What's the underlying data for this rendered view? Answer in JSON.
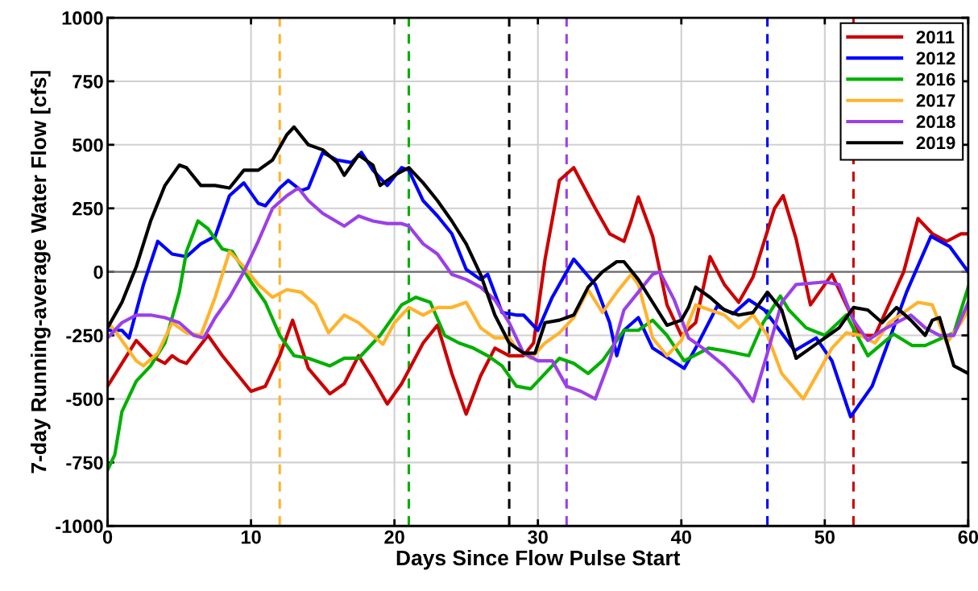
{
  "chart_data": {
    "type": "line",
    "xlabel": "Days Since Flow Pulse Start",
    "ylabel": "7-day Running-average Water Flow [cfs]",
    "xlim": [
      0,
      60
    ],
    "xticks": [
      0,
      10,
      20,
      30,
      40,
      50,
      60
    ],
    "ylim": [
      -1000,
      1000
    ],
    "yticks": [
      -1000,
      -750,
      -500,
      -250,
      0,
      250,
      500,
      750,
      1000
    ],
    "grid": true,
    "legend": "top right",
    "line_style": "solid",
    "marker": "none",
    "series": [
      {
        "name": "2011",
        "color": "#cc0000",
        "x": [
          0,
          2,
          3,
          4,
          4.5,
          5,
          5.5,
          7,
          8,
          10,
          11,
          12,
          12.9,
          14,
          15.5,
          16.5,
          17.5,
          18.5,
          19.5,
          20.5,
          22,
          23,
          24,
          25,
          26,
          27,
          28,
          29,
          29.7,
          30.5,
          31.5,
          32.5,
          34,
          35,
          36,
          36.5,
          37,
          38,
          39,
          40,
          41,
          42,
          43,
          44,
          45,
          46.5,
          47.1,
          48,
          49,
          50.5,
          51.5,
          52.5,
          53.5,
          55.5,
          56.5,
          57.5,
          58.5,
          59.5,
          60
        ],
        "values": [
          -450,
          -270,
          -330,
          -360,
          -330,
          -350,
          -360,
          -250,
          -330,
          -470,
          -450,
          -330,
          -190,
          -380,
          -480,
          -440,
          -330,
          -420,
          -520,
          -440,
          -280,
          -210,
          -400,
          -560,
          -410,
          -300,
          -330,
          -330,
          -280,
          50,
          360,
          410,
          250,
          150,
          120,
          200,
          295,
          140,
          -130,
          -250,
          -200,
          60,
          -50,
          -120,
          -20,
          250,
          300,
          130,
          -130,
          -10,
          -130,
          -250,
          -250,
          0,
          210,
          150,
          120,
          150,
          150
        ]
      },
      {
        "name": "2012",
        "color": "#0000ff",
        "x": [
          0,
          1,
          1.5,
          2.5,
          3.5,
          4.5,
          5.5,
          6.5,
          7.5,
          8.5,
          9.5,
          10.5,
          11,
          12,
          12.6,
          13.5,
          14,
          15,
          16,
          17,
          17.7,
          18.5,
          19.5,
          20.5,
          21,
          22,
          23,
          24,
          25,
          26,
          26.5,
          27.5,
          28.5,
          29,
          30,
          31,
          32.5,
          34,
          35,
          35.5,
          36,
          37,
          38,
          40.2,
          41,
          42.5,
          43.6,
          44.7,
          45.8,
          47.9,
          49.4,
          50.5,
          51.8,
          53.3,
          54.8,
          55.7,
          57.4,
          58.7,
          60
        ],
        "values": [
          -230,
          -230,
          -260,
          -50,
          120,
          70,
          60,
          110,
          140,
          300,
          350,
          270,
          260,
          330,
          360,
          320,
          330,
          470,
          440,
          430,
          470,
          400,
          340,
          410,
          400,
          280,
          220,
          150,
          10,
          -30,
          -10,
          -160,
          -170,
          -170,
          -230,
          -100,
          50,
          -50,
          -200,
          -330,
          -230,
          -180,
          -300,
          -380,
          -300,
          -135,
          -165,
          -110,
          -150,
          -310,
          -260,
          -350,
          -570,
          -450,
          -220,
          -80,
          140,
          100,
          0
        ]
      },
      {
        "name": "2016",
        "color": "#00b000",
        "x": [
          0,
          0.5,
          1,
          2,
          3,
          4,
          5,
          5.5,
          6.3,
          7,
          8,
          8.7,
          10,
          11,
          12,
          13,
          14,
          15,
          15.5,
          16.5,
          17.5,
          19,
          20.5,
          21.5,
          22.5,
          23.5,
          24.5,
          25.5,
          26.5,
          27.5,
          28.5,
          29.5,
          30.5,
          31.5,
          32.5,
          33.5,
          34.5,
          35.5,
          36,
          37,
          38,
          39,
          40.2,
          41.9,
          43,
          44.7,
          45.7,
          46.9,
          47.5,
          48.7,
          50,
          51.5,
          53,
          54.8,
          56.1,
          57,
          58.2,
          59,
          60
        ],
        "values": [
          -780,
          -720,
          -550,
          -430,
          -370,
          -280,
          -80,
          80,
          200,
          170,
          90,
          80,
          -40,
          -120,
          -250,
          -330,
          -340,
          -360,
          -370,
          -340,
          -340,
          -250,
          -130,
          -100,
          -120,
          -250,
          -280,
          -300,
          -330,
          -370,
          -450,
          -460,
          -400,
          -340,
          -360,
          -400,
          -350,
          -270,
          -230,
          -230,
          -190,
          -250,
          -350,
          -300,
          -310,
          -330,
          -200,
          -95,
          -150,
          -220,
          -250,
          -170,
          -330,
          -245,
          -290,
          -290,
          -260,
          -240,
          -60
        ]
      },
      {
        "name": "2017",
        "color": "#ffb32c",
        "x": [
          0,
          0.5,
          2,
          2.5,
          3.5,
          4.5,
          5.5,
          6.5,
          7.5,
          8.5,
          9.5,
          10.5,
          11.5,
          12.5,
          13.5,
          14.5,
          15.4,
          16.5,
          17.5,
          19.2,
          20,
          21,
          22,
          23,
          24,
          25,
          26,
          27,
          28,
          28.5,
          29.5,
          30.5,
          31.5,
          32.5,
          33.5,
          34.5,
          35.5,
          36.5,
          37,
          38,
          39,
          40,
          41,
          42,
          43,
          44,
          45,
          46,
          47,
          48.5,
          49.5,
          50.5,
          51.5,
          52.5,
          53.5,
          54.5,
          55.5,
          56.5,
          57.5,
          58.5,
          59.5,
          60
        ],
        "values": [
          -200,
          -230,
          -350,
          -370,
          -320,
          -200,
          -240,
          -250,
          -100,
          80,
          20,
          -50,
          -100,
          -70,
          -80,
          -130,
          -240,
          -170,
          -200,
          -285,
          -200,
          -140,
          -170,
          -140,
          -140,
          -120,
          -220,
          -260,
          -260,
          -300,
          -340,
          -280,
          -240,
          -180,
          -70,
          -160,
          -80,
          -10,
          -50,
          -260,
          -330,
          -270,
          -130,
          -150,
          -170,
          -220,
          -170,
          -250,
          -400,
          -500,
          -400,
          -300,
          -240,
          -250,
          -280,
          -200,
          -160,
          -120,
          -130,
          -280,
          -200,
          -150
        ]
      },
      {
        "name": "2018",
        "color": "#9b40e8",
        "x": [
          0,
          1,
          2,
          3,
          4,
          5,
          6,
          6.7,
          7.5,
          8.5,
          9.5,
          10.5,
          11.5,
          12.5,
          13.3,
          14,
          15,
          16.5,
          17.5,
          18.5,
          19.5,
          20.5,
          21,
          22,
          23,
          24,
          25,
          26,
          27,
          28,
          29,
          30,
          31,
          32,
          33,
          34,
          35,
          36,
          37,
          38,
          38.5,
          39.5,
          40.5,
          41.5,
          43,
          44,
          45,
          46,
          47,
          48,
          50,
          51,
          52,
          53,
          54,
          55,
          56,
          57,
          58,
          59,
          60
        ],
        "values": [
          -260,
          -200,
          -170,
          -170,
          -180,
          -200,
          -250,
          -260,
          -180,
          -100,
          0,
          120,
          250,
          300,
          330,
          280,
          230,
          180,
          220,
          200,
          190,
          190,
          180,
          110,
          70,
          -10,
          -30,
          -60,
          -110,
          -200,
          -320,
          -350,
          -350,
          -450,
          -470,
          -500,
          -350,
          -150,
          -80,
          -10,
          0,
          -110,
          -260,
          -300,
          -370,
          -430,
          -510,
          -320,
          -120,
          -50,
          -40,
          -50,
          -190,
          -270,
          -230,
          -200,
          -170,
          -220,
          -250,
          -250,
          -120
        ]
      },
      {
        "name": "2019",
        "color": "#000000",
        "x": [
          0,
          1,
          2,
          3,
          4,
          5,
          5.5,
          6.5,
          7.5,
          8.5,
          9.5,
          10.5,
          11.5,
          12.5,
          13,
          14,
          15,
          16,
          16.5,
          17.5,
          18.5,
          19,
          20,
          21,
          22,
          23,
          24,
          25,
          26,
          27,
          28,
          29,
          29.8,
          30.5,
          31.5,
          32.5,
          33.5,
          34.5,
          35.5,
          36,
          37,
          38,
          39,
          40,
          40.5,
          41,
          42,
          43,
          44,
          45,
          46,
          47,
          48,
          49,
          50,
          51,
          52,
          53,
          54,
          55,
          56,
          57,
          57.5,
          58,
          59,
          60
        ],
        "values": [
          -220,
          -120,
          20,
          200,
          340,
          420,
          410,
          340,
          340,
          330,
          400,
          400,
          440,
          540,
          570,
          500,
          480,
          430,
          380,
          460,
          420,
          340,
          380,
          410,
          350,
          280,
          200,
          110,
          -10,
          -170,
          -280,
          -320,
          -320,
          -200,
          -190,
          -170,
          -60,
          0,
          40,
          40,
          -30,
          -120,
          -210,
          -190,
          -140,
          -60,
          -100,
          -150,
          -170,
          -160,
          -80,
          -150,
          -340,
          -300,
          -260,
          -220,
          -140,
          -150,
          -200,
          -140,
          -190,
          -250,
          -190,
          -180,
          -370,
          -400
        ]
      }
    ],
    "ref_lines": [
      {
        "axis": "y",
        "value": 0,
        "color": "#6e6e6e",
        "line_style": "solid"
      },
      {
        "axis": "x",
        "value": 12,
        "color": "#ffb32c",
        "line_style": "dashed"
      },
      {
        "axis": "x",
        "value": 21,
        "color": "#00b000",
        "line_style": "dashed"
      },
      {
        "axis": "x",
        "value": 28,
        "color": "#000000",
        "line_style": "dashed"
      },
      {
        "axis": "x",
        "value": 32,
        "color": "#9b40e8",
        "line_style": "dashed"
      },
      {
        "axis": "x",
        "value": 46,
        "color": "#0000ff",
        "line_style": "dashed"
      },
      {
        "axis": "x",
        "value": 52,
        "color": "#cc0000",
        "line_style": "dashed"
      }
    ]
  }
}
